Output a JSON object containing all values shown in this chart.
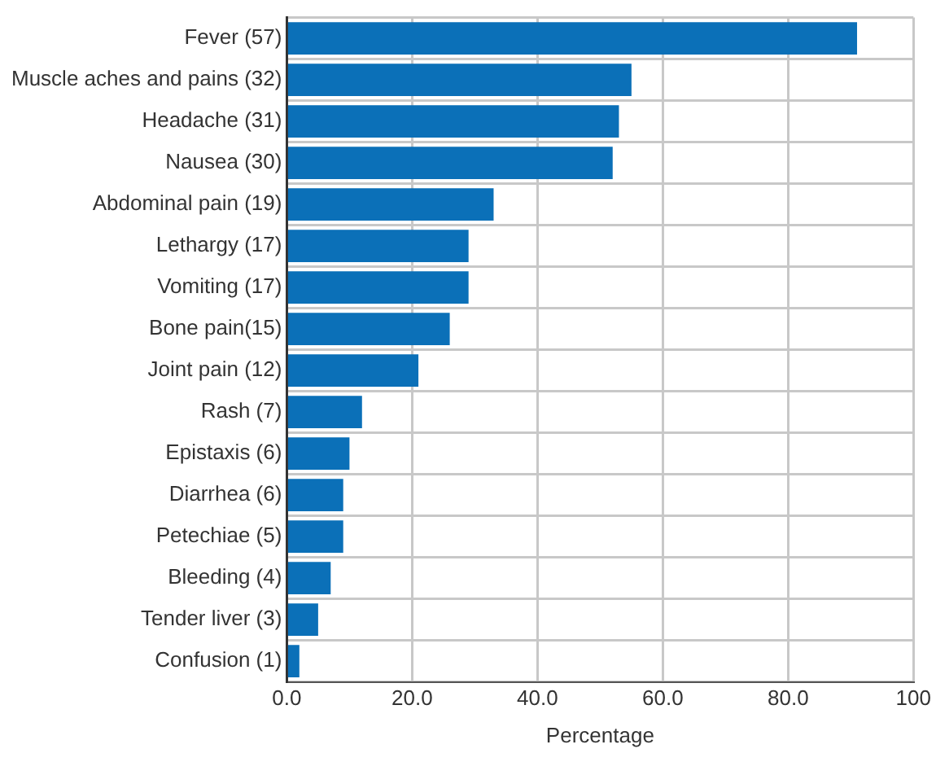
{
  "chart_data": {
    "type": "bar",
    "orientation": "horizontal",
    "xlabel": "Percentage",
    "categories": [
      "Fever (57)",
      "Muscle aches and pains (32)",
      "Headache (31)",
      "Nausea (30)",
      "Abdominal pain (19)",
      "Lethargy (17)",
      "Vomiting (17)",
      "Bone pain(15)",
      "Joint pain (12)",
      "Rash (7)",
      "Epistaxis (6)",
      "Diarrhea (6)",
      "Petechiae (5)",
      "Bleeding (4)",
      "Tender liver (3)",
      "Confusion (1)"
    ],
    "values": [
      91,
      55,
      53,
      52,
      33,
      29,
      29,
      26,
      21,
      12,
      10,
      9,
      9,
      7,
      5,
      2
    ],
    "color": "#0b70b8",
    "xlim": [
      0,
      100
    ],
    "xticks": [
      {
        "value": 0,
        "label": "0.0"
      },
      {
        "value": 20,
        "label": "20.0"
      },
      {
        "value": 40,
        "label": "40.0"
      },
      {
        "value": 60,
        "label": "60.0"
      },
      {
        "value": 80,
        "label": "80.0"
      },
      100
    ],
    "grid": true
  }
}
